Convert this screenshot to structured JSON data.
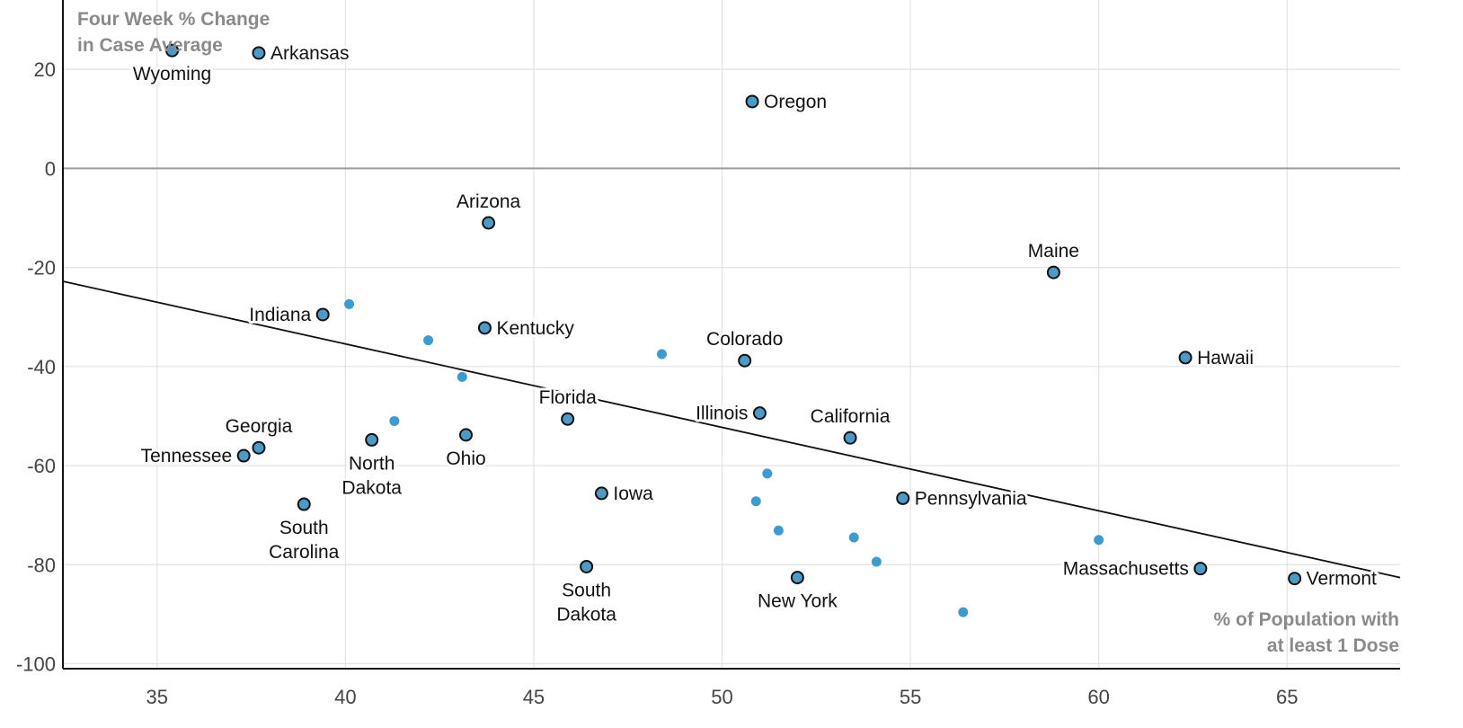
{
  "colors": {
    "labeled_point": "#4a9cc6",
    "labeled_point_stroke": "#111111",
    "unlabeled_point": "#3d9bd0",
    "grid": "#e2e2e2",
    "zero_line": "#9b9b9b",
    "axis": "#111111",
    "trend_line": "#111111",
    "tick_text": "#444444",
    "axis_title_text": "#8a8a8a",
    "point_label_text": "#111111"
  },
  "chart_data": {
    "type": "scatter",
    "title": "",
    "ylabel": "Four Week % Change in Case Average",
    "ylabel_lines": [
      "Four Week % Change",
      "in Case Average"
    ],
    "xlabel": "% of Population with at least 1 Dose",
    "xlabel_lines": [
      "% of Population with",
      "at least 1 Dose"
    ],
    "xlim": [
      32.5,
      68
    ],
    "ylim": [
      -101,
      34
    ],
    "x_ticks": [
      35,
      40,
      45,
      50,
      55,
      60,
      65
    ],
    "y_ticks": [
      20,
      0,
      -20,
      -40,
      -60,
      -80,
      -100
    ],
    "x_tick_labels": [
      "35",
      "40",
      "45",
      "50",
      "55",
      "60",
      "65"
    ],
    "y_tick_labels": [
      "20",
      "0",
      "-20",
      "-40",
      "-60",
      "-80",
      "-100"
    ],
    "grid": true,
    "zero_line": true,
    "trend_line": {
      "x": [
        32.5,
        68
      ],
      "y": [
        -22.8,
        -82.6
      ]
    },
    "labeled_points": [
      {
        "name": "Wyoming",
        "x": 35.4,
        "y": 23.8,
        "lines": [
          "Wyoming"
        ],
        "pos": "below"
      },
      {
        "name": "Arkansas",
        "x": 37.7,
        "y": 23.3,
        "lines": [
          "Arkansas"
        ],
        "pos": "right"
      },
      {
        "name": "Oregon",
        "x": 50.8,
        "y": 13.5,
        "lines": [
          "Oregon"
        ],
        "pos": "right"
      },
      {
        "name": "Arizona",
        "x": 43.8,
        "y": -11,
        "lines": [
          "Arizona"
        ],
        "pos": "above"
      },
      {
        "name": "Maine",
        "x": 58.8,
        "y": -21,
        "lines": [
          "Maine"
        ],
        "pos": "above"
      },
      {
        "name": "Indiana",
        "x": 39.4,
        "y": -29.5,
        "lines": [
          "Indiana"
        ],
        "pos": "left"
      },
      {
        "name": "Kentucky",
        "x": 43.7,
        "y": -32.2,
        "lines": [
          "Kentucky"
        ],
        "pos": "right"
      },
      {
        "name": "Colorado",
        "x": 50.6,
        "y": -38.8,
        "lines": [
          "Colorado"
        ],
        "pos": "above"
      },
      {
        "name": "Hawaii",
        "x": 62.3,
        "y": -38.2,
        "lines": [
          "Hawaii"
        ],
        "pos": "right"
      },
      {
        "name": "Florida",
        "x": 45.9,
        "y": -50.6,
        "lines": [
          "Florida"
        ],
        "pos": "above"
      },
      {
        "name": "Illinois",
        "x": 51,
        "y": -49.4,
        "lines": [
          "Illinois"
        ],
        "pos": "left"
      },
      {
        "name": "California",
        "x": 53.4,
        "y": -54.4,
        "lines": [
          "California"
        ],
        "pos": "above"
      },
      {
        "name": "Georgia",
        "x": 37.7,
        "y": -56.4,
        "lines": [
          "Georgia"
        ],
        "pos": "above"
      },
      {
        "name": "Tennessee",
        "x": 37.3,
        "y": -58,
        "lines": [
          "Tennessee"
        ],
        "pos": "left"
      },
      {
        "name": "North Dakota",
        "x": 40.7,
        "y": -54.8,
        "lines": [
          "North",
          "Dakota"
        ],
        "pos": "below"
      },
      {
        "name": "Ohio",
        "x": 43.2,
        "y": -53.8,
        "lines": [
          "Ohio"
        ],
        "pos": "below"
      },
      {
        "name": "Iowa",
        "x": 46.8,
        "y": -65.6,
        "lines": [
          "Iowa"
        ],
        "pos": "right"
      },
      {
        "name": "Pennsylvania",
        "x": 54.8,
        "y": -66.6,
        "lines": [
          "Pennsylvania"
        ],
        "pos": "right"
      },
      {
        "name": "South Carolina",
        "x": 38.9,
        "y": -67.8,
        "lines": [
          "South",
          "Carolina"
        ],
        "pos": "below"
      },
      {
        "name": "South Dakota",
        "x": 46.4,
        "y": -80.4,
        "lines": [
          "South",
          "Dakota"
        ],
        "pos": "below"
      },
      {
        "name": "New York",
        "x": 52,
        "y": -82.6,
        "lines": [
          "New York"
        ],
        "pos": "below"
      },
      {
        "name": "Massachusetts",
        "x": 62.7,
        "y": -80.8,
        "lines": [
          "Massachusetts"
        ],
        "pos": "left"
      },
      {
        "name": "Vermont",
        "x": 65.2,
        "y": -82.8,
        "lines": [
          "Vermont"
        ],
        "pos": "right"
      }
    ],
    "unlabeled_points": [
      {
        "x": 40.1,
        "y": -27.4
      },
      {
        "x": 42.2,
        "y": -34.7
      },
      {
        "x": 43.1,
        "y": -42.1
      },
      {
        "x": 41.3,
        "y": -51
      },
      {
        "x": 48.4,
        "y": -37.5
      },
      {
        "x": 51.2,
        "y": -61.6
      },
      {
        "x": 50.9,
        "y": -67.2
      },
      {
        "x": 51.5,
        "y": -73.1
      },
      {
        "x": 53.5,
        "y": -74.5
      },
      {
        "x": 54.1,
        "y": -79.4
      },
      {
        "x": 60,
        "y": -75
      },
      {
        "x": 56.4,
        "y": -89.6
      }
    ]
  }
}
